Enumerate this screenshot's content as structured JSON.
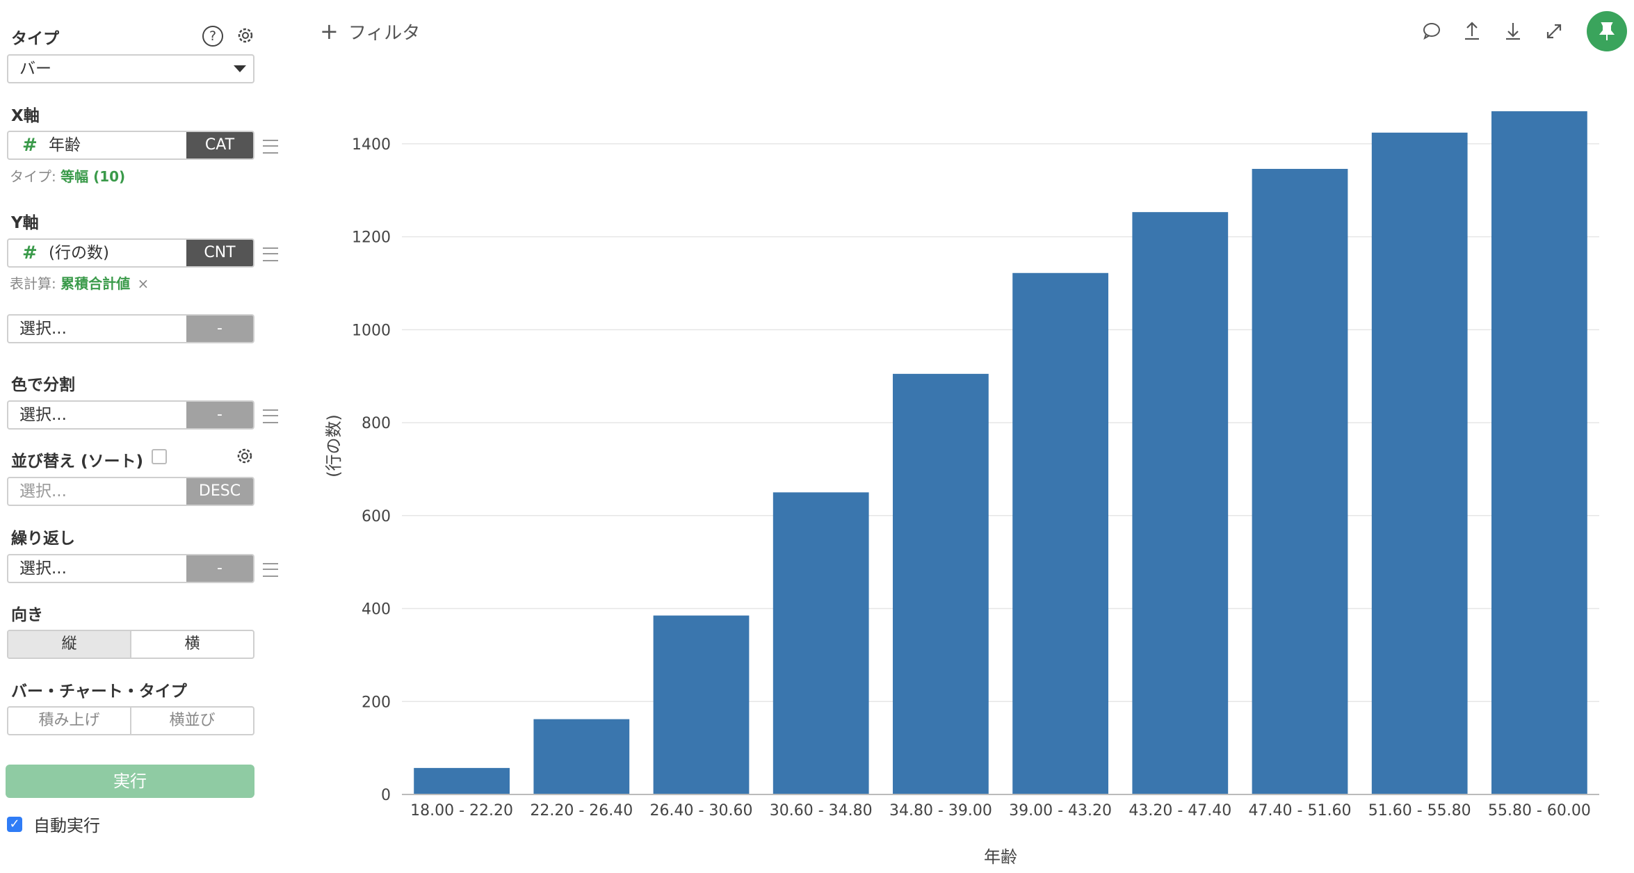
{
  "sidebar": {
    "type_label": "タイプ",
    "type_value": "バー",
    "x_axis": {
      "label": "X軸",
      "field": "年齢",
      "agg": "CAT",
      "sub_prefix": "タイプ: ",
      "sub_value": "等幅 (10)"
    },
    "y_axis": {
      "label": "Y軸",
      "field": "(行の数)",
      "agg": "CNT",
      "sub_prefix": "表計算: ",
      "sub_value": "累積合計値",
      "sub_close": "×"
    },
    "extra": {
      "placeholder": "選択...",
      "btn": "-"
    },
    "color_split": {
      "label": "色で分割",
      "placeholder": "選択...",
      "btn": "-"
    },
    "sort": {
      "label": "並び替え (ソート)",
      "placeholder": "選択...",
      "btn": "DESC"
    },
    "repeat": {
      "label": "繰り返し",
      "placeholder": "選択...",
      "btn": "-"
    },
    "orientation": {
      "label": "向き",
      "options": [
        "縦",
        "横"
      ],
      "selected": "縦"
    },
    "bar_type": {
      "label": "バー・チャート・タイプ",
      "options": [
        "積み上げ",
        "横並び"
      ]
    },
    "run_label": "実行",
    "auto_run_label": "自動実行"
  },
  "topbar": {
    "filter_label": "フィルタ",
    "icons": [
      "comment-icon",
      "upload-icon",
      "download-icon",
      "expand-icon",
      "pin-icon"
    ]
  },
  "colors": {
    "bar": "#3a76ae",
    "accent": "#3aa45c",
    "run": "#8fcba3"
  },
  "chart_data": {
    "type": "bar",
    "categories": [
      "18.00 - 22.20",
      "22.20 - 26.40",
      "26.40 - 30.60",
      "30.60 - 34.80",
      "34.80 - 39.00",
      "39.00 - 43.20",
      "43.20 - 47.40",
      "47.40 - 51.60",
      "51.60 - 55.80",
      "55.80 - 60.00"
    ],
    "values": [
      57,
      162,
      385,
      650,
      905,
      1122,
      1253,
      1346,
      1424,
      1470
    ],
    "xlabel": "年齢",
    "ylabel": "(行の数)",
    "ylim": [
      0,
      1500
    ],
    "yticks": [
      0,
      200,
      400,
      600,
      800,
      1000,
      1200,
      1400
    ],
    "grid": true
  }
}
